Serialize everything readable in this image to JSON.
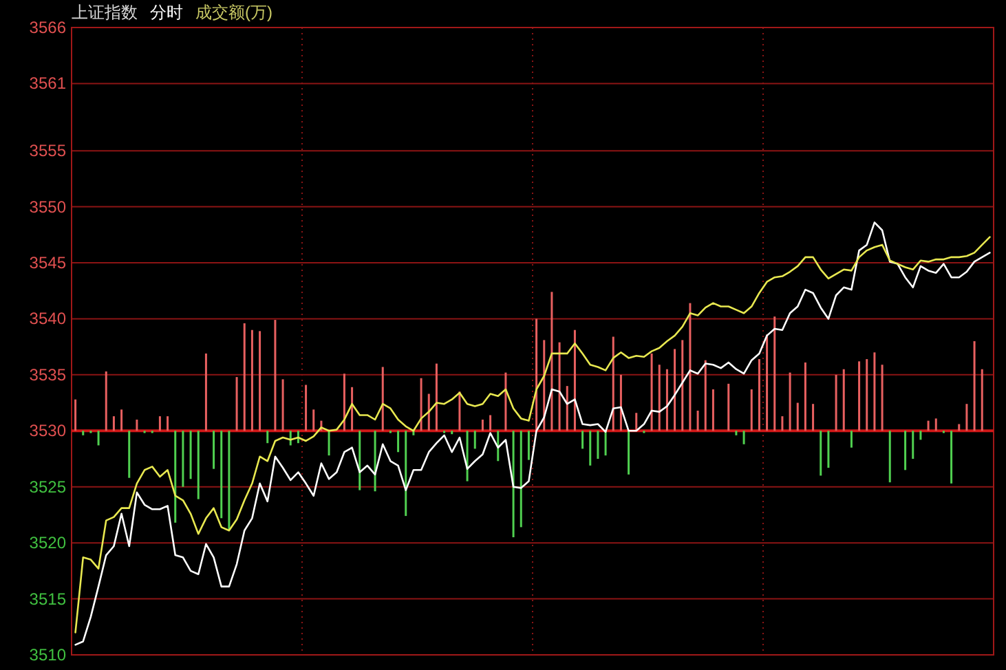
{
  "chart_data": {
    "type": "line",
    "title": "上证指数",
    "subtitle": "分时",
    "annotations": [
      "成交额(万)"
    ],
    "categories": [
      null,
      null,
      null,
      null,
      null,
      null,
      null,
      null,
      null,
      null,
      null,
      null,
      null,
      null,
      null,
      null,
      null,
      null,
      null,
      null,
      null,
      null,
      null,
      null,
      null,
      null,
      null,
      null,
      null,
      null,
      null,
      null,
      null,
      null,
      null,
      null,
      null,
      null,
      null,
      null,
      null,
      null,
      null,
      null,
      null,
      null,
      null,
      null,
      null,
      null,
      null,
      null,
      null,
      null,
      null,
      null,
      null,
      null,
      null,
      null,
      null,
      null,
      null,
      null,
      null,
      null,
      null,
      null,
      null,
      null,
      null,
      null,
      null,
      null,
      null,
      null,
      null,
      null,
      null,
      null,
      null,
      null,
      null,
      null,
      null,
      null,
      null,
      null,
      null,
      null,
      null,
      null,
      null,
      null,
      null,
      null,
      null,
      null,
      null,
      null,
      null,
      null,
      null,
      null,
      null,
      null,
      null,
      null,
      null,
      null,
      null,
      null,
      null,
      null,
      null,
      null,
      null,
      null,
      null,
      null
    ],
    "ylim": [
      3510,
      3566
    ],
    "yticks": [
      3510,
      3515,
      3520,
      3525,
      3530,
      3535,
      3540,
      3545,
      3550,
      3555,
      3561,
      3566
    ],
    "tick_labels": "y",
    "grid": true,
    "ref_lines": [
      {
        "axis": "y",
        "value": 3530,
        "color": "#d01818"
      }
    ],
    "series": [
      {
        "type": "bar",
        "values": [
          2.8,
          -0.4,
          -0.2,
          -1.3,
          5.3,
          1.3,
          1.9,
          -4.2,
          1.0,
          -0.2,
          -0.2,
          1.3,
          1.3,
          -8.2,
          -5.0,
          -4.3,
          -6.1,
          6.9,
          -3.4,
          -7.8,
          -8.8,
          4.8,
          9.6,
          9.0,
          8.9,
          -1.1,
          9.9,
          4.6,
          -1.3,
          -1.1,
          4.1,
          1.9,
          0.9,
          -2.2,
          null,
          5.1,
          3.9,
          -5.3,
          null,
          -5.4,
          5.7,
          -0.2,
          -1.9,
          -7.6,
          -0.4,
          4.7,
          3.3,
          6.0,
          -0.2,
          -0.3,
          3.5,
          -4.5,
          -1.6,
          1.0,
          1.4,
          -2.7,
          5.2,
          -9.5,
          -8.6,
          -2.6,
          10.0,
          8.1,
          12.4,
          7.9,
          4.0,
          9.0,
          -1.6,
          -3.1,
          -2.5,
          -2.2,
          8.4,
          5.0,
          -3.9,
          1.6,
          -0.2,
          6.9,
          5.9,
          5.5,
          7.3,
          8.1,
          11.4,
          1.8,
          6.3,
          3.7,
          null,
          4.2,
          -0.4,
          -1.2,
          3.7,
          6.4,
          8.6,
          10.2,
          1.3,
          5.2,
          2.5,
          6.1,
          2.4,
          -4.0,
          -3.3,
          5.0,
          5.5,
          -1.5,
          6.2,
          6.4,
          7.0,
          5.9,
          -4.6,
          null,
          -3.5,
          -2.5,
          -0.8,
          0.9,
          1.1,
          -0.2,
          -4.7,
          0.6,
          2.4,
          8.0,
          5.5,
          null
        ],
        "colors": [
          "#e86060",
          "#50d050",
          "#50d050",
          "#50d050",
          "#e86060",
          "#e86060",
          "#e86060",
          "#50d050",
          "#e86060",
          "#50d050",
          "#50d050",
          "#e86060",
          "#e86060",
          "#50d050",
          "#50d050",
          "#50d050",
          "#50d050",
          "#e86060",
          "#50d050",
          "#50d050",
          "#50d050",
          "#e86060",
          "#e86060",
          "#e86060",
          "#e86060",
          "#50d050",
          "#e86060",
          "#e86060",
          "#50d050",
          "#50d050",
          "#e86060",
          "#e86060",
          "#e86060",
          "#50d050",
          null,
          "#e86060",
          "#e86060",
          "#50d050",
          null,
          "#50d050",
          "#e86060",
          "#50d050",
          "#50d050",
          "#50d050",
          "#50d050",
          "#e86060",
          "#e86060",
          "#e86060",
          "#50d050",
          "#50d050",
          "#e86060",
          "#50d050",
          "#50d050",
          "#e86060",
          "#e86060",
          "#50d050",
          "#e86060",
          "#50d050",
          "#50d050",
          "#50d050",
          "#e86060",
          "#e86060",
          "#e86060",
          "#e86060",
          "#e86060",
          "#e86060",
          "#50d050",
          "#50d050",
          "#50d050",
          "#50d050",
          "#e86060",
          "#e86060",
          "#50d050",
          "#e86060",
          "#50d050",
          "#e86060",
          "#e86060",
          "#e86060",
          "#e86060",
          "#e86060",
          "#e86060",
          "#e86060",
          "#e86060",
          "#e86060",
          null,
          "#e86060",
          "#50d050",
          "#50d050",
          "#e86060",
          "#e86060",
          "#e86060",
          "#e86060",
          "#e86060",
          "#e86060",
          "#e86060",
          "#e86060",
          "#e86060",
          "#50d050",
          "#50d050",
          "#e86060",
          "#e86060",
          "#50d050",
          "#e86060",
          "#e86060",
          "#e86060",
          "#e86060",
          "#50d050",
          null,
          "#50d050",
          "#50d050",
          "#50d050",
          "#e86060",
          "#e86060",
          "#50d050",
          "#50d050",
          "#e86060",
          "#e86060",
          "#e86060",
          "#e86060",
          null
        ],
        "base": [
          3530,
          3530,
          3530,
          3530,
          3530,
          3530,
          3530,
          3530,
          3530,
          3530,
          3530,
          3530,
          3530,
          3530,
          3530,
          3530,
          3530,
          3530,
          3530,
          3530,
          3530,
          3530,
          3530,
          3530,
          3530,
          3530,
          3530,
          3530,
          3530,
          3530,
          3530,
          3530,
          3530,
          3530,
          null,
          3530,
          3530,
          3530,
          null,
          3530,
          3530,
          3530,
          3530,
          3530,
          3530,
          3530,
          3530,
          3530,
          3530,
          3530,
          3530,
          3530,
          3530,
          3530,
          3530,
          3530,
          3530,
          3530,
          3530,
          3530,
          3530,
          3530,
          3530,
          3530,
          3530,
          3530,
          3530,
          3530,
          3530,
          3530,
          3530,
          3530,
          3530,
          3530,
          3530,
          3530,
          3530,
          3530,
          3530,
          3530,
          3530,
          3530,
          3530,
          3530,
          null,
          3530,
          3530,
          3530,
          3530,
          3530,
          3530,
          3530,
          3530,
          3530,
          3530,
          3530,
          3530,
          3530,
          3530,
          3530,
          3530,
          3530,
          3530,
          3530,
          3530,
          3530,
          3530,
          null,
          3530,
          3530,
          3530,
          3530,
          3530,
          3530,
          3530,
          3530,
          3530,
          3530,
          3530,
          null
        ]
      },
      {
        "color": "#ffffff",
        "values": [
          3510.9,
          3511.2,
          3513.4,
          3516.1,
          3518.9,
          3519.7,
          3522.6,
          3519.7,
          3524.5,
          3523.4,
          3523.0,
          3523.0,
          3523.3,
          3518.9,
          3518.7,
          3517.5,
          3517.2,
          3519.9,
          3518.7,
          3516.1,
          3516.1,
          3518.1,
          3521.1,
          3522.2,
          3525.3,
          3523.7,
          3527.7,
          3526.7,
          3525.6,
          3526.3,
          3525.3,
          3524.2,
          3527.1,
          3525.7,
          3526.3,
          3528.1,
          3528.5,
          3526.3,
          3526.9,
          3526.1,
          3528.8,
          3527.3,
          3526.9,
          3524.7,
          3526.5,
          3526.5,
          3528.1,
          3528.9,
          3529.6,
          3528.1,
          3529.4,
          3526.6,
          3527.3,
          3527.9,
          3529.8,
          3528.5,
          3529.2,
          3525.0,
          3524.9,
          3525.5,
          3530.0,
          3531.2,
          3533.7,
          3533.5,
          3532.4,
          3532.8,
          3530.6,
          3530.5,
          3530.6,
          3529.9,
          3532.0,
          3532.1,
          3530.0,
          3530.0,
          3530.6,
          3531.8,
          3531.7,
          3532.2,
          3533.2,
          3534.3,
          3535.4,
          3535.1,
          3536.0,
          3535.9,
          3535.6,
          3536.1,
          3535.5,
          3535.1,
          3536.3,
          3536.9,
          3538.5,
          3539.1,
          3539.0,
          3540.5,
          3541.1,
          3542.6,
          3542.3,
          3541.0,
          3540.0,
          3542.1,
          3542.8,
          3542.6,
          3546.1,
          3546.6,
          3548.6,
          3547.9,
          3545.1,
          3544.9,
          3543.7,
          3542.8,
          3544.7,
          3544.3,
          3544.1,
          3544.9,
          3543.7,
          3543.7,
          3544.2,
          3545.1,
          3545.5,
          3545.9
        ]
      },
      {
        "color": "#e8e850",
        "values": [
          3512.0,
          3518.7,
          3518.5,
          3517.7,
          3522.0,
          3522.3,
          3523.1,
          3523.1,
          3525.3,
          3526.5,
          3526.8,
          3525.9,
          3526.5,
          3524.2,
          3523.8,
          3522.6,
          3520.8,
          3522.2,
          3523.1,
          3521.4,
          3521.1,
          3522.1,
          3523.8,
          3525.3,
          3527.7,
          3527.3,
          3529.1,
          3529.4,
          3529.2,
          3529.4,
          3529.1,
          3529.5,
          3530.3,
          3530.0,
          3530.1,
          3531.0,
          3532.4,
          3531.4,
          3531.4,
          3531.0,
          3532.4,
          3532.0,
          3531.0,
          3530.4,
          3530.0,
          3531.1,
          3531.7,
          3532.5,
          3532.4,
          3532.8,
          3533.4,
          3532.4,
          3532.2,
          3532.4,
          3533.3,
          3533.1,
          3533.7,
          3532.0,
          3531.1,
          3530.9,
          3533.7,
          3534.9,
          3536.9,
          3536.9,
          3536.9,
          3537.8,
          3536.9,
          3535.9,
          3535.7,
          3535.4,
          3536.5,
          3537.0,
          3536.5,
          3536.7,
          3536.6,
          3537.1,
          3537.4,
          3538.0,
          3538.5,
          3539.3,
          3540.5,
          3540.3,
          3541.0,
          3541.4,
          3541.1,
          3541.1,
          3540.8,
          3540.5,
          3541.1,
          3542.3,
          3543.3,
          3543.7,
          3543.8,
          3544.2,
          3544.7,
          3545.5,
          3545.5,
          3544.4,
          3543.6,
          3544.0,
          3544.4,
          3544.3,
          3545.5,
          3546.1,
          3546.4,
          3546.6,
          3545.2,
          3544.9,
          3544.6,
          3544.4,
          3545.2,
          3545.1,
          3545.3,
          3545.3,
          3545.5,
          3545.5,
          3545.6,
          3545.9,
          3546.6,
          3547.3
        ]
      }
    ]
  }
}
